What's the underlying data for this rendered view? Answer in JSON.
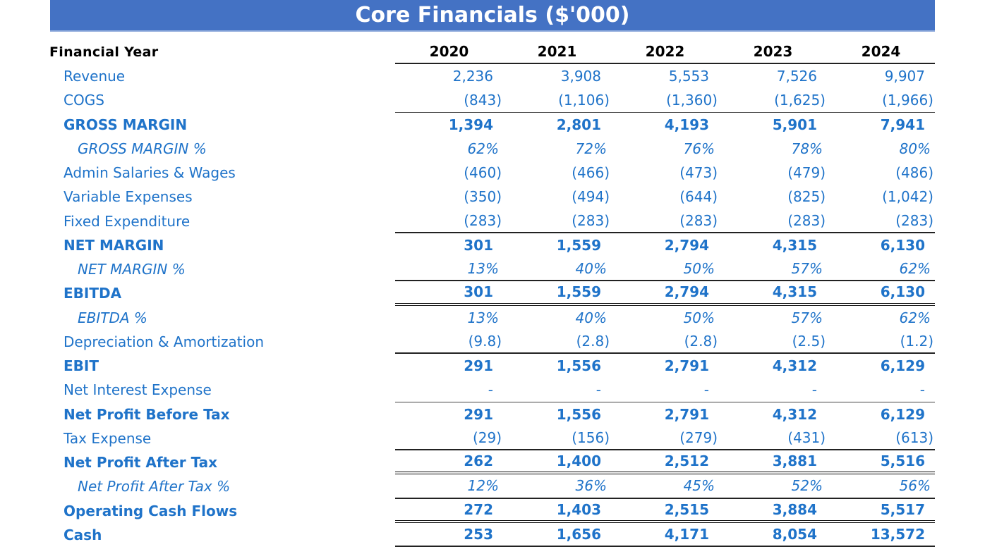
{
  "title": "Core Financials ($'000)",
  "header": {
    "label": "Financial Year",
    "years": [
      "2020",
      "2021",
      "2022",
      "2023",
      "2024"
    ]
  },
  "rows": [
    {
      "label": "Revenue",
      "style": "normal",
      "values": [
        "2,236",
        "3,908",
        "5,553",
        "7,526",
        "9,907"
      ]
    },
    {
      "label": "COGS",
      "style": "normal",
      "values": [
        "(843)",
        "(1,106)",
        "(1,360)",
        "(1,625)",
        "(1,966)"
      ]
    },
    {
      "label": "GROSS MARGIN",
      "style": "bold",
      "values": [
        "1,394",
        "2,801",
        "4,193",
        "5,901",
        "7,941"
      ]
    },
    {
      "label": "GROSS MARGIN %",
      "style": "percent",
      "values": [
        "62%",
        "72%",
        "76%",
        "78%",
        "80%"
      ]
    },
    {
      "label": "Admin Salaries & Wages",
      "style": "normal",
      "values": [
        "(460)",
        "(466)",
        "(473)",
        "(479)",
        "(486)"
      ]
    },
    {
      "label": "Variable Expenses",
      "style": "normal",
      "values": [
        "(350)",
        "(494)",
        "(644)",
        "(825)",
        "(1,042)"
      ]
    },
    {
      "label": "Fixed Expenditure",
      "style": "normal",
      "values": [
        "(283)",
        "(283)",
        "(283)",
        "(283)",
        "(283)"
      ]
    },
    {
      "label": "NET MARGIN",
      "style": "bold",
      "values": [
        "301",
        "1,559",
        "2,794",
        "4,315",
        "6,130"
      ]
    },
    {
      "label": "NET MARGIN %",
      "style": "percent",
      "values": [
        "13%",
        "40%",
        "50%",
        "57%",
        "62%"
      ]
    },
    {
      "label": "EBITDA",
      "style": "bold",
      "values": [
        "301",
        "1,559",
        "2,794",
        "4,315",
        "6,130"
      ]
    },
    {
      "label": "EBITDA %",
      "style": "percent",
      "values": [
        "13%",
        "40%",
        "50%",
        "57%",
        "62%"
      ]
    },
    {
      "label": "Depreciation & Amortization",
      "style": "normal",
      "values": [
        "(9.8)",
        "(2.8)",
        "(2.8)",
        "(2.5)",
        "(1.2)"
      ]
    },
    {
      "label": "EBIT",
      "style": "bold",
      "values": [
        "291",
        "1,556",
        "2,791",
        "4,312",
        "6,129"
      ]
    },
    {
      "label": "Net Interest Expense",
      "style": "normal",
      "values": [
        "-",
        "-",
        "-",
        "-",
        "-"
      ]
    },
    {
      "label": "Net Profit Before Tax",
      "style": "bold",
      "values": [
        "291",
        "1,556",
        "2,791",
        "4,312",
        "6,129"
      ]
    },
    {
      "label": "Tax Expense",
      "style": "normal",
      "values": [
        "(29)",
        "(156)",
        "(279)",
        "(431)",
        "(613)"
      ]
    },
    {
      "label": "Net Profit After Tax",
      "style": "bold",
      "values": [
        "262",
        "1,400",
        "2,512",
        "3,881",
        "5,516"
      ]
    },
    {
      "label": "Net Profit After Tax %",
      "style": "percent",
      "values": [
        "12%",
        "36%",
        "45%",
        "52%",
        "56%"
      ]
    },
    {
      "label": "Operating Cash Flows",
      "style": "bold",
      "values": [
        "272",
        "1,403",
        "2,515",
        "3,884",
        "5,517"
      ]
    },
    {
      "label": "Cash",
      "style": "bold",
      "values": [
        "253",
        "1,656",
        "4,171",
        "8,054",
        "13,572"
      ]
    }
  ]
}
